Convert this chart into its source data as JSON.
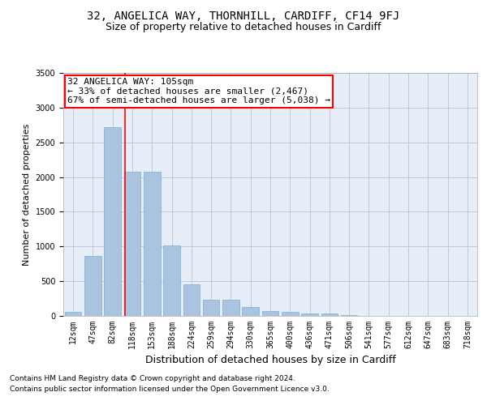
{
  "title": "32, ANGELICA WAY, THORNHILL, CARDIFF, CF14 9FJ",
  "subtitle": "Size of property relative to detached houses in Cardiff",
  "xlabel": "Distribution of detached houses by size in Cardiff",
  "ylabel": "Number of detached properties",
  "categories": [
    "12sqm",
    "47sqm",
    "82sqm",
    "118sqm",
    "153sqm",
    "188sqm",
    "224sqm",
    "259sqm",
    "294sqm",
    "330sqm",
    "365sqm",
    "400sqm",
    "436sqm",
    "471sqm",
    "506sqm",
    "541sqm",
    "577sqm",
    "612sqm",
    "647sqm",
    "683sqm",
    "718sqm"
  ],
  "values": [
    60,
    860,
    2720,
    2080,
    2080,
    1010,
    460,
    230,
    230,
    130,
    65,
    55,
    35,
    30,
    10,
    5,
    0,
    0,
    0,
    0,
    0
  ],
  "bar_color": "#aac4e0",
  "bar_edgecolor": "#7aafd4",
  "grid_color": "#c0c8d8",
  "background_color": "#e8eef8",
  "vline_x_index": 2.62,
  "vline_color": "red",
  "annotation_text": "32 ANGELICA WAY: 105sqm\n← 33% of detached houses are smaller (2,467)\n67% of semi-detached houses are larger (5,038) →",
  "annotation_box_color": "white",
  "annotation_box_edgecolor": "red",
  "ylim": [
    0,
    3500
  ],
  "footer_line1": "Contains HM Land Registry data © Crown copyright and database right 2024.",
  "footer_line2": "Contains public sector information licensed under the Open Government Licence v3.0.",
  "title_fontsize": 10,
  "subtitle_fontsize": 9,
  "xlabel_fontsize": 9,
  "ylabel_fontsize": 8,
  "tick_fontsize": 7,
  "annotation_fontsize": 8,
  "footer_fontsize": 6.5
}
